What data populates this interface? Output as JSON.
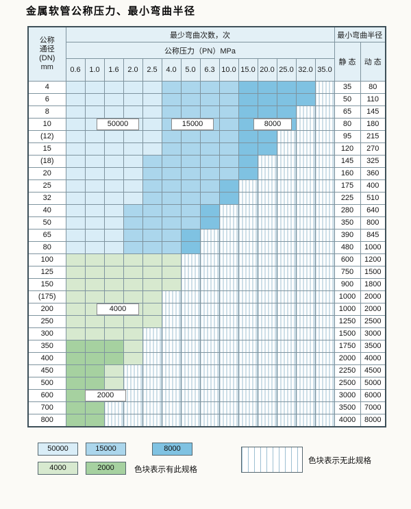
{
  "title": "金属软管公称压力、最小弯曲半径",
  "table": {
    "header": {
      "dn_lines": [
        "公称",
        "通径",
        "(DN)",
        "mm"
      ],
      "cycles_title": "最少弯曲次数，次",
      "pressure_title": "公称压力（PN）MPa",
      "radius_title": "最小弯曲半径",
      "static_label": "静 态",
      "dynamic_label": "动 态"
    }
  },
  "zone_colors": {
    "50000": "#d9edf7",
    "15000": "#abd6ec",
    "8000": "#7fc2e2",
    "4000": "#d7e9cf",
    "2000": "#a6d1a0"
  },
  "no_spec_stripe_color": "#9dbfd2",
  "overlays": [
    {
      "label": "50000"
    },
    {
      "label": "15000"
    },
    {
      "label": "8000"
    },
    {
      "label": "4000"
    },
    {
      "label": "2000"
    }
  ],
  "legend": {
    "items": [
      {
        "label": "50000",
        "color": "#d9edf7"
      },
      {
        "label": "15000",
        "color": "#abd6ec"
      },
      {
        "label": "8000",
        "color": "#7fc2e2"
      },
      {
        "label": "4000",
        "color": "#d7e9cf"
      },
      {
        "label": "2000",
        "color": "#a6d1a0"
      }
    ],
    "has_spec_text": "色块表示有此规格",
    "no_spec_text": "色块表示无此规格"
  },
  "chart_data": {
    "type": "heatmap",
    "title": "金属软管公称压力、最小弯曲半径",
    "row_header": "公称通径(DN) mm",
    "col_header": "公称压力(PN) MPa",
    "value_meaning": "最少弯曲次数，次",
    "radius_title": "最小弯曲半径",
    "radius_columns": [
      "静态",
      "动态"
    ],
    "cycle_levels": [
      50000,
      15000,
      8000,
      4000,
      2000
    ],
    "columns_pn_mpa": [
      0.6,
      1.0,
      1.6,
      2.0,
      2.5,
      4.0,
      5.0,
      6.3,
      10.0,
      15.0,
      20.0,
      25.0,
      32.0,
      35.0
    ],
    "rows": [
      {
        "dn": "4",
        "cycles": [
          50000,
          50000,
          50000,
          50000,
          50000,
          15000,
          15000,
          15000,
          15000,
          8000,
          8000,
          8000,
          8000,
          null
        ],
        "static": 35,
        "dynamic": 80
      },
      {
        "dn": "6",
        "cycles": [
          50000,
          50000,
          50000,
          50000,
          50000,
          15000,
          15000,
          15000,
          15000,
          8000,
          8000,
          8000,
          8000,
          null
        ],
        "static": 50,
        "dynamic": 110
      },
      {
        "dn": "8",
        "cycles": [
          50000,
          50000,
          50000,
          50000,
          50000,
          15000,
          15000,
          15000,
          15000,
          8000,
          8000,
          8000,
          null,
          null
        ],
        "static": 65,
        "dynamic": 145
      },
      {
        "dn": "10",
        "cycles": [
          50000,
          50000,
          50000,
          50000,
          50000,
          15000,
          15000,
          15000,
          15000,
          8000,
          8000,
          8000,
          null,
          null
        ],
        "static": 80,
        "dynamic": 180
      },
      {
        "dn": "(12)",
        "cycles": [
          50000,
          50000,
          50000,
          50000,
          50000,
          15000,
          15000,
          15000,
          15000,
          8000,
          8000,
          null,
          null,
          null
        ],
        "static": 95,
        "dynamic": 215
      },
      {
        "dn": "15",
        "cycles": [
          50000,
          50000,
          50000,
          50000,
          50000,
          15000,
          15000,
          15000,
          15000,
          8000,
          8000,
          null,
          null,
          null
        ],
        "static": 120,
        "dynamic": 270
      },
      {
        "dn": "(18)",
        "cycles": [
          50000,
          50000,
          50000,
          50000,
          15000,
          15000,
          15000,
          15000,
          15000,
          8000,
          null,
          null,
          null,
          null
        ],
        "static": 145,
        "dynamic": 325
      },
      {
        "dn": "20",
        "cycles": [
          50000,
          50000,
          50000,
          50000,
          15000,
          15000,
          15000,
          15000,
          15000,
          8000,
          null,
          null,
          null,
          null
        ],
        "static": 160,
        "dynamic": 360
      },
      {
        "dn": "25",
        "cycles": [
          50000,
          50000,
          50000,
          50000,
          15000,
          15000,
          15000,
          15000,
          8000,
          null,
          null,
          null,
          null,
          null
        ],
        "static": 175,
        "dynamic": 400
      },
      {
        "dn": "32",
        "cycles": [
          50000,
          50000,
          50000,
          50000,
          15000,
          15000,
          15000,
          15000,
          8000,
          null,
          null,
          null,
          null,
          null
        ],
        "static": 225,
        "dynamic": 510
      },
      {
        "dn": "40",
        "cycles": [
          50000,
          50000,
          50000,
          15000,
          15000,
          15000,
          15000,
          8000,
          null,
          null,
          null,
          null,
          null,
          null
        ],
        "static": 280,
        "dynamic": 640
      },
      {
        "dn": "50",
        "cycles": [
          50000,
          50000,
          50000,
          15000,
          15000,
          15000,
          15000,
          8000,
          null,
          null,
          null,
          null,
          null,
          null
        ],
        "static": 350,
        "dynamic": 800
      },
      {
        "dn": "65",
        "cycles": [
          50000,
          50000,
          50000,
          15000,
          15000,
          15000,
          8000,
          null,
          null,
          null,
          null,
          null,
          null,
          null
        ],
        "static": 390,
        "dynamic": 845
      },
      {
        "dn": "80",
        "cycles": [
          50000,
          50000,
          50000,
          15000,
          15000,
          15000,
          8000,
          null,
          null,
          null,
          null,
          null,
          null,
          null
        ],
        "static": 480,
        "dynamic": 1000
      },
      {
        "dn": "100",
        "cycles": [
          4000,
          4000,
          4000,
          4000,
          4000,
          4000,
          null,
          null,
          null,
          null,
          null,
          null,
          null,
          null
        ],
        "static": 600,
        "dynamic": 1200
      },
      {
        "dn": "125",
        "cycles": [
          4000,
          4000,
          4000,
          4000,
          4000,
          4000,
          null,
          null,
          null,
          null,
          null,
          null,
          null,
          null
        ],
        "static": 750,
        "dynamic": 1500
      },
      {
        "dn": "150",
        "cycles": [
          4000,
          4000,
          4000,
          4000,
          4000,
          4000,
          null,
          null,
          null,
          null,
          null,
          null,
          null,
          null
        ],
        "static": 900,
        "dynamic": 1800
      },
      {
        "dn": "(175)",
        "cycles": [
          4000,
          4000,
          4000,
          4000,
          4000,
          null,
          null,
          null,
          null,
          null,
          null,
          null,
          null,
          null
        ],
        "static": 1000,
        "dynamic": 2000
      },
      {
        "dn": "200",
        "cycles": [
          4000,
          4000,
          4000,
          4000,
          4000,
          null,
          null,
          null,
          null,
          null,
          null,
          null,
          null,
          null
        ],
        "static": 1000,
        "dynamic": 2000
      },
      {
        "dn": "250",
        "cycles": [
          4000,
          4000,
          4000,
          4000,
          4000,
          null,
          null,
          null,
          null,
          null,
          null,
          null,
          null,
          null
        ],
        "static": 1250,
        "dynamic": 2500
      },
      {
        "dn": "300",
        "cycles": [
          4000,
          4000,
          4000,
          4000,
          null,
          null,
          null,
          null,
          null,
          null,
          null,
          null,
          null,
          null
        ],
        "static": 1500,
        "dynamic": 3000
      },
      {
        "dn": "350",
        "cycles": [
          2000,
          2000,
          2000,
          4000,
          null,
          null,
          null,
          null,
          null,
          null,
          null,
          null,
          null,
          null
        ],
        "static": 1750,
        "dynamic": 3500
      },
      {
        "dn": "400",
        "cycles": [
          2000,
          2000,
          2000,
          4000,
          null,
          null,
          null,
          null,
          null,
          null,
          null,
          null,
          null,
          null
        ],
        "static": 2000,
        "dynamic": 4000
      },
      {
        "dn": "450",
        "cycles": [
          2000,
          2000,
          4000,
          null,
          null,
          null,
          null,
          null,
          null,
          null,
          null,
          null,
          null,
          null
        ],
        "static": 2250,
        "dynamic": 4500
      },
      {
        "dn": "500",
        "cycles": [
          2000,
          2000,
          4000,
          null,
          null,
          null,
          null,
          null,
          null,
          null,
          null,
          null,
          null,
          null
        ],
        "static": 2500,
        "dynamic": 5000
      },
      {
        "dn": "600",
        "cycles": [
          2000,
          2000,
          2000,
          null,
          null,
          null,
          null,
          null,
          null,
          null,
          null,
          null,
          null,
          null
        ],
        "static": 3000,
        "dynamic": 6000
      },
      {
        "dn": "700",
        "cycles": [
          2000,
          2000,
          null,
          null,
          null,
          null,
          null,
          null,
          null,
          null,
          null,
          null,
          null,
          null
        ],
        "static": 3500,
        "dynamic": 7000
      },
      {
        "dn": "800",
        "cycles": [
          2000,
          2000,
          null,
          null,
          null,
          null,
          null,
          null,
          null,
          null,
          null,
          null,
          null,
          null
        ],
        "static": 4000,
        "dynamic": 8000
      }
    ],
    "legend": {
      "has_spec": [
        "50000",
        "15000",
        "8000",
        "4000",
        "2000"
      ],
      "has_spec_text": "色块表示有此规格",
      "no_spec_text": "色块表示无此规格"
    }
  }
}
